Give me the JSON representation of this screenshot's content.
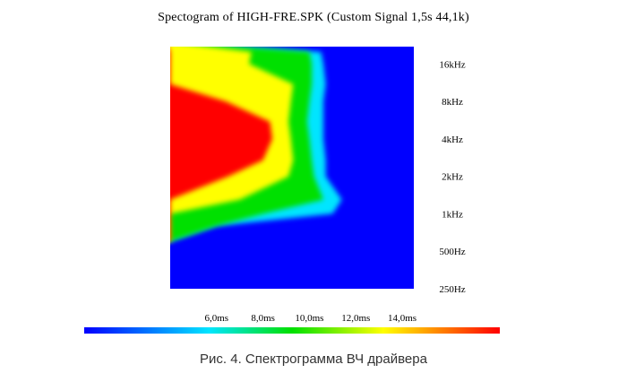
{
  "chart_data": {
    "type": "heatmap",
    "title": "Spectogram of HIGH-FRE.SPK (Custom Signal 1,5s 44,1k)",
    "y_tick_labels": [
      "16kHz",
      "8kHz",
      "4kHz",
      "2kHz",
      "1kHz",
      "500Hz",
      "250Hz"
    ],
    "x_tick_labels": [
      "6,0ms",
      "8,0ms",
      "10,0ms",
      "12,0ms",
      "14,0ms"
    ],
    "x_range_ms": [
      4.0,
      14.5
    ],
    "y_range_hz": [
      250,
      22050
    ],
    "y_scale": "log",
    "grid": false,
    "colormap": [
      "#0000ff",
      "#00e5ff",
      "#00e000",
      "#ffff00",
      "#ff0000"
    ],
    "background_color": "#0000ff",
    "energy_contours": [
      {
        "level": "cyan",
        "x_end_ms": [
          10.5,
          10.6,
          10.7,
          10.6,
          10.6,
          10.6,
          10.7,
          10.7,
          11.4,
          11.0,
          6.0,
          4.0
        ]
      },
      {
        "level": "green",
        "x_end_ms": [
          10.0,
          10.1,
          10.1,
          10.0,
          9.9,
          10.0,
          10.1,
          10.2,
          10.6,
          8.0,
          6.0,
          4.0
        ]
      },
      {
        "level": "yellow",
        "x_end_ms": [
          7.5,
          7.4,
          9.3,
          9.2,
          9.1,
          9.2,
          9.3,
          9.1,
          7.0,
          4.0,
          4.0,
          4.0
        ]
      },
      {
        "level": "red",
        "x_end_ms": [
          4.0,
          4.0,
          4.0,
          6.4,
          8.3,
          8.4,
          8.0,
          6.5,
          4.0,
          4.0,
          4.0,
          4.0
        ]
      }
    ],
    "contour_freqs_hz": [
      20000,
      16000,
      11000,
      8000,
      5500,
      4000,
      2700,
      2000,
      1300,
      1000,
      800,
      600
    ]
  },
  "caption": "Рис. 4. Спектрограмма ВЧ драйвера"
}
